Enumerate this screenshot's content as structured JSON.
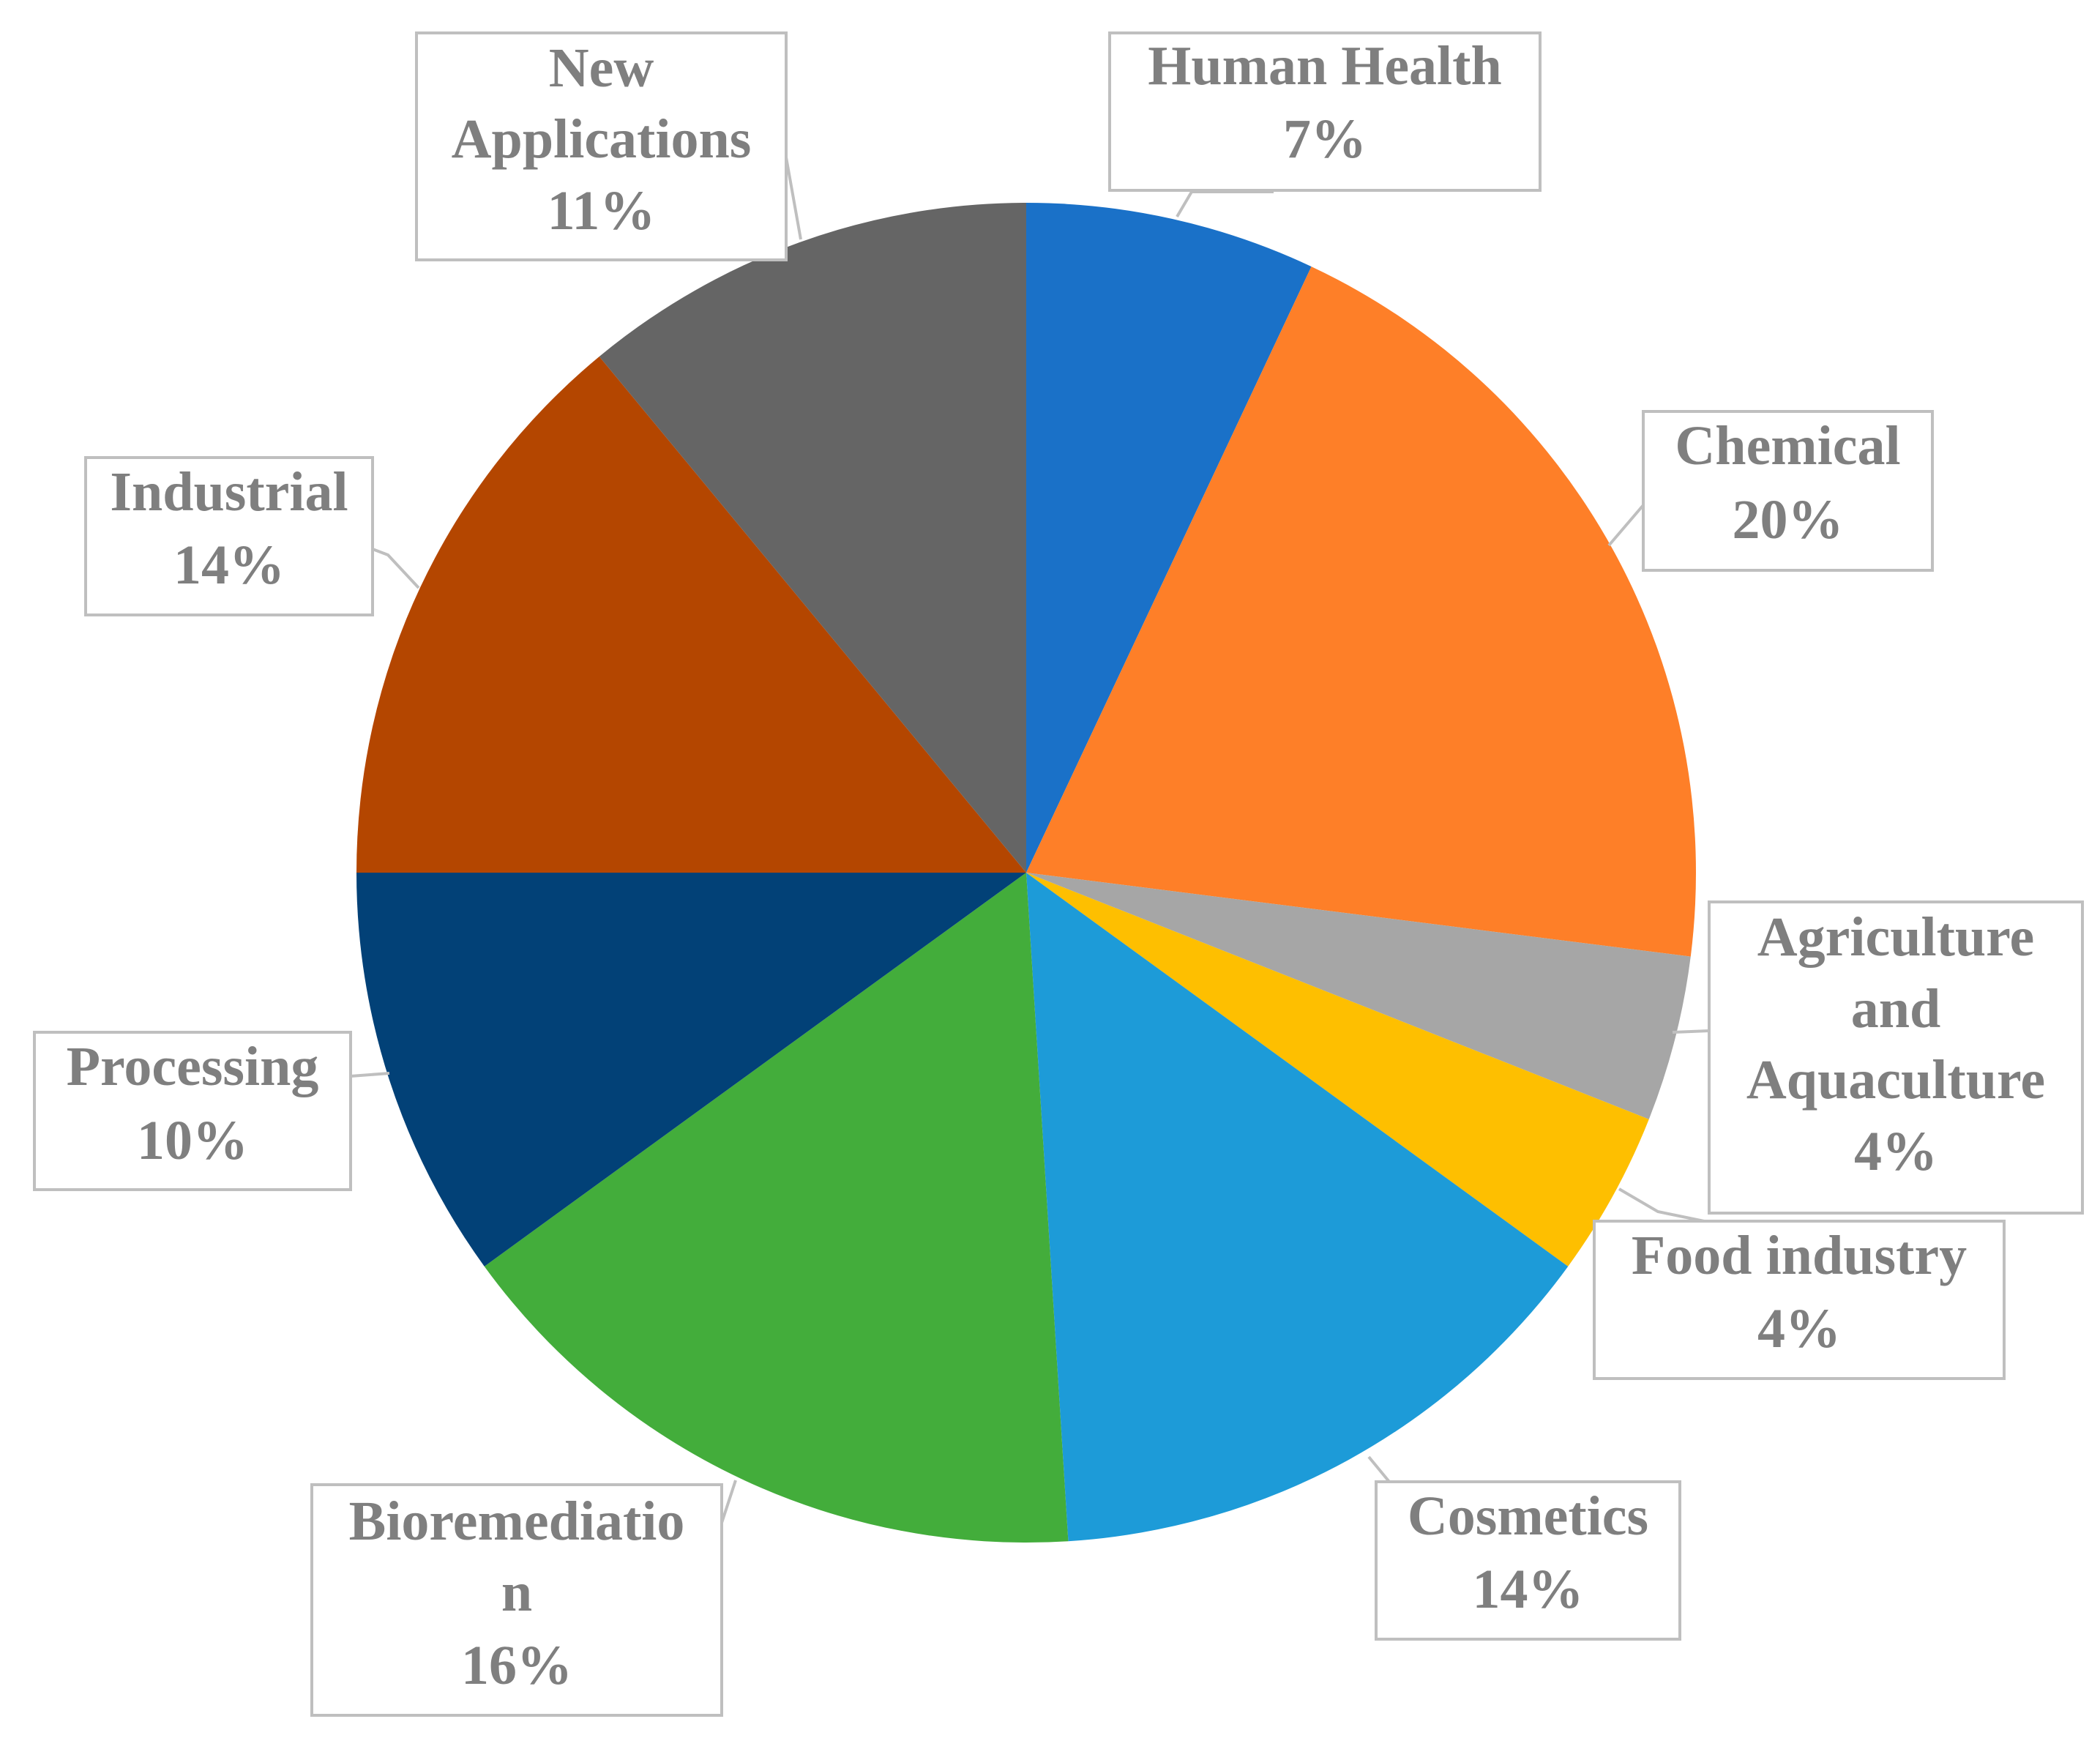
{
  "chart_data": {
    "type": "pie",
    "slices": [
      {
        "label": "Human Health",
        "value": 7,
        "display": "7%",
        "color": "#1a71c8"
      },
      {
        "label": "Chemical",
        "value": 20,
        "display": "20%",
        "color": "#fe7f28"
      },
      {
        "label": "Agriculture and Aquaculture",
        "value": 4,
        "display": "4%",
        "color": "#a6a6a6"
      },
      {
        "label": "Food industry",
        "value": 4,
        "display": "4%",
        "color": "#febf00"
      },
      {
        "label": "Cosmetics",
        "value": 14,
        "display": "14%",
        "color": "#1d9bd8"
      },
      {
        "label": "Bioremediation",
        "value": 16,
        "display": "16%",
        "color": "#43ad3b"
      },
      {
        "label": "Processing",
        "value": 10,
        "display": "10%",
        "color": "#024177"
      },
      {
        "label": "Industrial",
        "value": 14,
        "display": "14%",
        "color": "#b44600"
      },
      {
        "label": "New Applications",
        "value": 11,
        "display": "11%",
        "color": "#656565"
      }
    ]
  }
}
